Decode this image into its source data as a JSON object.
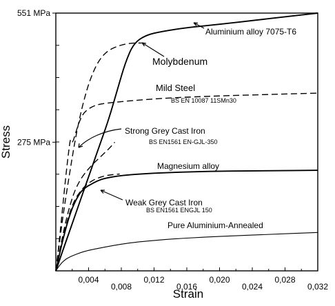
{
  "chart_data": {
    "type": "line",
    "title": "",
    "xlabel": "Strain",
    "ylabel": "Stress",
    "xlim": [
      0,
      0.032
    ],
    "ylim": [
      0,
      551
    ],
    "x_ticks": [
      {
        "value": 0.004,
        "label": "0,004"
      },
      {
        "value": 0.008,
        "label": "0,008"
      },
      {
        "value": 0.012,
        "label": "0,012"
      },
      {
        "value": 0.016,
        "label": "0,016"
      },
      {
        "value": 0.02,
        "label": "0,020"
      },
      {
        "value": 0.024,
        "label": "0,024"
      },
      {
        "value": 0.028,
        "label": "0,028"
      },
      {
        "value": 0.032,
        "label": "0,032"
      }
    ],
    "y_ticks": [
      {
        "value": 275,
        "label": "275 MPa"
      },
      {
        "value": 551,
        "label": "551 MPa"
      }
    ],
    "grid": false,
    "series": [
      {
        "name": "Aluminium alloy 7075-T6",
        "style": "solid-heavy",
        "x": [
          0,
          0.0007,
          0.0015,
          0.0025,
          0.0035,
          0.0045,
          0.0055,
          0.0065,
          0.0075,
          0.0085,
          0.0095,
          0.011,
          0.013,
          0.016,
          0.02,
          0.024,
          0.028,
          0.032
        ],
        "y": [
          0,
          36,
          76,
          126,
          176,
          226,
          276,
          326,
          386,
          446,
          486,
          504,
          512,
          520,
          527,
          535,
          543,
          551
        ]
      },
      {
        "name": "Molybdenum",
        "style": "dashed",
        "x": [
          0,
          0.0008,
          0.0016,
          0.0024,
          0.0032,
          0.004,
          0.0048,
          0.0056,
          0.0065,
          0.0075,
          0.0085,
          0.0095,
          0.0105
        ],
        "y": [
          0,
          110,
          200,
          285,
          350,
          400,
          435,
          458,
          472,
          480,
          485,
          487,
          487
        ]
      },
      {
        "name": "Mild Steel",
        "style": "dashed",
        "x": [
          0,
          0.0004,
          0.0008,
          0.0012,
          0.0016,
          0.0018,
          0.002,
          0.0025,
          0.003,
          0.0035,
          0.0045,
          0.0055,
          0.007,
          0.01,
          0.014,
          0.02,
          0.026,
          0.032
        ],
        "y": [
          0,
          60,
          130,
          200,
          260,
          285,
          270,
          300,
          325,
          340,
          352,
          357,
          360,
          365,
          370,
          374,
          377,
          380
        ]
      },
      {
        "name": "Strong Grey Cast Iron",
        "style": "dashed",
        "x": [
          0,
          0.0006,
          0.0012,
          0.0018,
          0.0024,
          0.003,
          0.0036,
          0.0042,
          0.0048,
          0.0054,
          0.006,
          0.0066,
          0.0072
        ],
        "y": [
          0,
          55,
          105,
          145,
          175,
          195,
          210,
          222,
          233,
          243,
          253,
          263,
          275
        ]
      },
      {
        "name": "Magnesium alloy",
        "style": "solid-heavy",
        "x": [
          0,
          0.0006,
          0.0012,
          0.0018,
          0.0024,
          0.003,
          0.0036,
          0.0042,
          0.005,
          0.006,
          0.008,
          0.011,
          0.015,
          0.02,
          0.026,
          0.032
        ],
        "y": [
          0,
          48,
          90,
          125,
          150,
          168,
          178,
          184,
          192,
          198,
          204,
          208,
          211,
          213,
          214,
          215
        ]
      },
      {
        "name": "Weak Grey Cast Iron",
        "style": "dashed",
        "x": [
          0,
          0.0006,
          0.0012,
          0.0018,
          0.0024,
          0.003,
          0.0036,
          0.0042,
          0.0048,
          0.0054,
          0.006,
          0.0066,
          0.0072,
          0.0078
        ],
        "y": [
          0,
          50,
          95,
          130,
          155,
          170,
          182,
          190,
          196,
          200,
          203,
          205,
          206,
          207
        ]
      },
      {
        "name": "Pure Aluminium-Annealed",
        "style": "thin",
        "x": [
          0,
          0.0005,
          0.001,
          0.0015,
          0.002,
          0.003,
          0.004,
          0.006,
          0.008,
          0.01,
          0.014,
          0.018,
          0.022,
          0.026,
          0.032
        ],
        "y": [
          0,
          13,
          22,
          28,
          32,
          39,
          44,
          51,
          57,
          62,
          68,
          72,
          75,
          78,
          82
        ]
      }
    ],
    "annotations": {
      "aluminium": {
        "label": "Aluminium alloy 7075-T6"
      },
      "molybdenum": {
        "label": "Molybdenum"
      },
      "mild_steel": {
        "label": "Mild Steel",
        "sublabel": "BS EN 10087 11SMn30"
      },
      "strong_grey": {
        "label": "Strong Grey Cast Iron",
        "sublabel": "BS EN1561 EN-GJL-350"
      },
      "magnesium": {
        "label": "Magnesium alloy"
      },
      "weak_grey": {
        "label": "Weak Grey Cast Iron",
        "sublabel": "BS EN1561 ENGJL 150"
      },
      "pure_al": {
        "label": "Pure Aluminium-Annealed"
      }
    }
  }
}
